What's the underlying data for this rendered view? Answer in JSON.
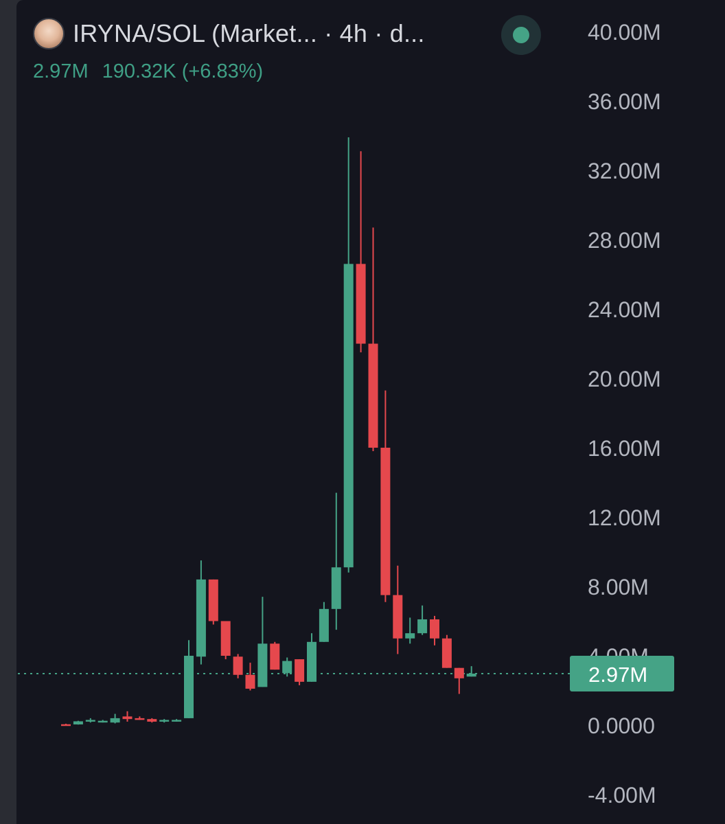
{
  "header": {
    "title": "IRYNA/SOL (Market... · 4h · d...",
    "last_value": "2.97M",
    "change": "190.32K (+6.83%)"
  },
  "colors": {
    "up": "#45a386",
    "down": "#e5484d",
    "background": "#14151e",
    "axis_text": "#b3b6bf"
  },
  "chart_data": {
    "type": "candlestick",
    "ylim": [
      -4000000,
      40000000
    ],
    "y_ticks": [
      "40.00M",
      "36.00M",
      "32.00M",
      "28.00M",
      "24.00M",
      "20.00M",
      "16.00M",
      "12.00M",
      "8.00M",
      "4.00M",
      "0.0000",
      "-4.00M"
    ],
    "y_tick_values": [
      40000000,
      36000000,
      32000000,
      28000000,
      24000000,
      20000000,
      16000000,
      12000000,
      8000000,
      4000000,
      0,
      -4000000
    ],
    "last_price": 2970000,
    "last_price_label": "2.97M",
    "candles": [
      {
        "o": 50000,
        "h": 80000,
        "l": 20000,
        "c": 40000
      },
      {
        "o": 40000,
        "h": 250000,
        "l": 30000,
        "c": 220000
      },
      {
        "o": 200000,
        "h": 400000,
        "l": 150000,
        "c": 300000
      },
      {
        "o": 200000,
        "h": 300000,
        "l": 150000,
        "c": 250000
      },
      {
        "o": 150000,
        "h": 650000,
        "l": 100000,
        "c": 400000
      },
      {
        "o": 500000,
        "h": 800000,
        "l": 200000,
        "c": 350000
      },
      {
        "o": 400000,
        "h": 500000,
        "l": 300000,
        "c": 350000
      },
      {
        "o": 350000,
        "h": 400000,
        "l": 150000,
        "c": 200000
      },
      {
        "o": 200000,
        "h": 350000,
        "l": 150000,
        "c": 300000
      },
      {
        "o": 250000,
        "h": 350000,
        "l": 200000,
        "c": 300000
      },
      {
        "o": 400000,
        "h": 4900000,
        "l": 400000,
        "c": 4000000
      },
      {
        "o": 3950000,
        "h": 9500000,
        "l": 3500000,
        "c": 8400000
      },
      {
        "o": 8400000,
        "h": 8400000,
        "l": 5800000,
        "c": 6000000
      },
      {
        "o": 6000000,
        "h": 6000000,
        "l": 3800000,
        "c": 4000000
      },
      {
        "o": 3950000,
        "h": 4100000,
        "l": 2700000,
        "c": 2900000
      },
      {
        "o": 2900000,
        "h": 3600000,
        "l": 2000000,
        "c": 2100000
      },
      {
        "o": 2200000,
        "h": 7400000,
        "l": 2200000,
        "c": 4700000
      },
      {
        "o": 4700000,
        "h": 4800000,
        "l": 3200000,
        "c": 3200000
      },
      {
        "o": 3000000,
        "h": 3900000,
        "l": 2800000,
        "c": 3700000
      },
      {
        "o": 3800000,
        "h": 3800000,
        "l": 2300000,
        "c": 2500000
      },
      {
        "o": 2500000,
        "h": 5300000,
        "l": 2500000,
        "c": 4800000
      },
      {
        "o": 4800000,
        "h": 7100000,
        "l": 4800000,
        "c": 6700000
      },
      {
        "o": 6700000,
        "h": 13400000,
        "l": 5500000,
        "c": 9100000
      },
      {
        "o": 9100000,
        "h": 33900000,
        "l": 8800000,
        "c": 26600000
      },
      {
        "o": 26600000,
        "h": 33100000,
        "l": 21500000,
        "c": 22000000
      },
      {
        "o": 22000000,
        "h": 28700000,
        "l": 15800000,
        "c": 16000000
      },
      {
        "o": 16000000,
        "h": 19300000,
        "l": 7100000,
        "c": 7500000
      },
      {
        "o": 7500000,
        "h": 9200000,
        "l": 4100000,
        "c": 5000000
      },
      {
        "o": 5000000,
        "h": 6200000,
        "l": 4700000,
        "c": 5300000
      },
      {
        "o": 5300000,
        "h": 6900000,
        "l": 5200000,
        "c": 6100000
      },
      {
        "o": 6100000,
        "h": 6300000,
        "l": 4600000,
        "c": 5000000
      },
      {
        "o": 5000000,
        "h": 5200000,
        "l": 3300000,
        "c": 3300000
      },
      {
        "o": 3300000,
        "h": 3300000,
        "l": 1800000,
        "c": 2700000
      },
      {
        "o": 2800000,
        "h": 3400000,
        "l": 2800000,
        "c": 2970000
      }
    ]
  }
}
